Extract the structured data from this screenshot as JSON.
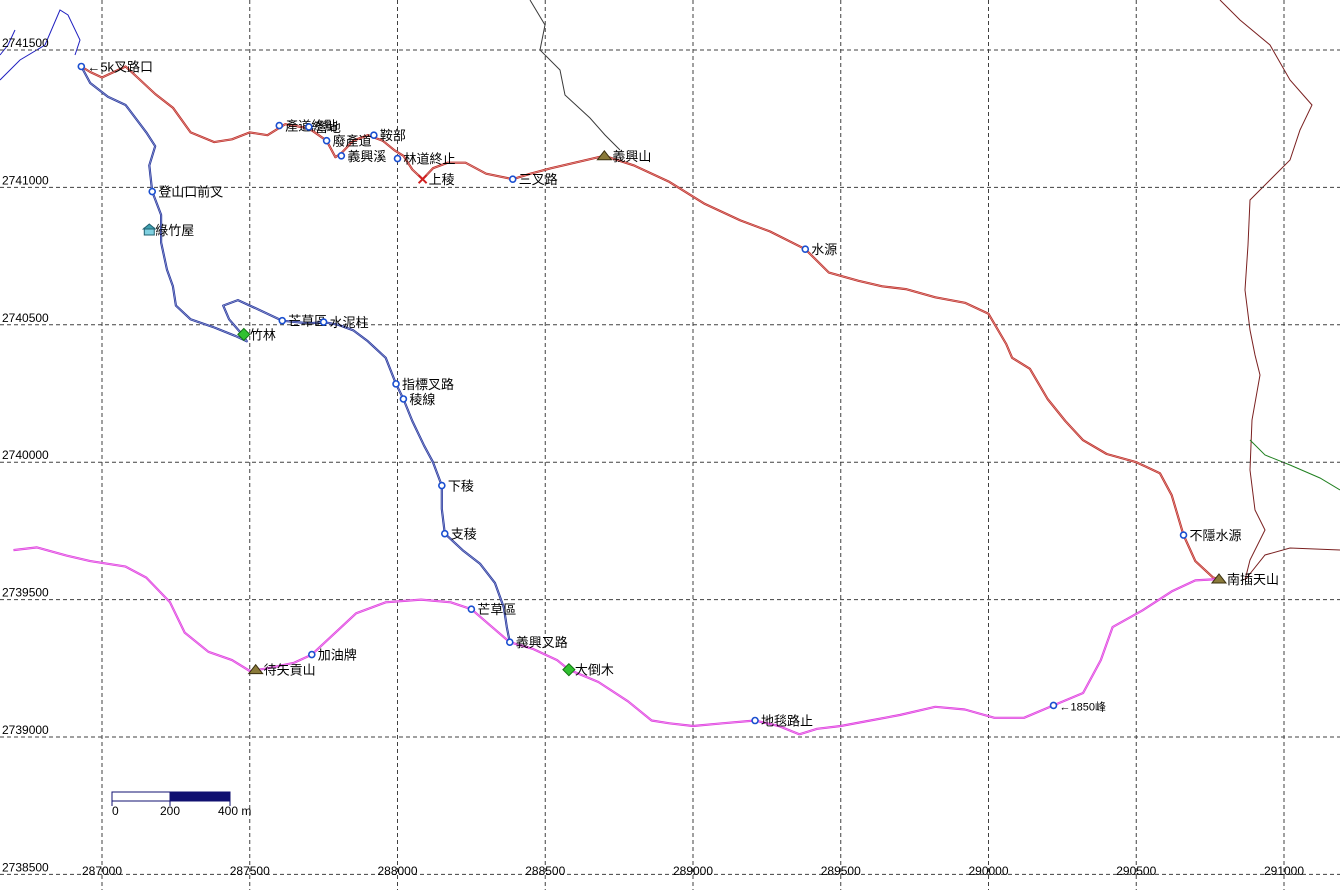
{
  "axes": {
    "x_ticks": [
      {
        "value": 287000,
        "label": "287000"
      },
      {
        "value": 287500,
        "label": "287500"
      },
      {
        "value": 288000,
        "label": "288000"
      },
      {
        "value": 288500,
        "label": "288500"
      },
      {
        "value": 289000,
        "label": "289000"
      },
      {
        "value": 289500,
        "label": "289500"
      },
      {
        "value": 290000,
        "label": "290000"
      },
      {
        "value": 290500,
        "label": "290500"
      },
      {
        "value": 291000,
        "label": "291000"
      }
    ],
    "y_ticks": [
      {
        "value": 2741500,
        "label": "2741500"
      },
      {
        "value": 2741000,
        "label": "2741000"
      },
      {
        "value": 2740500,
        "label": "2740500"
      },
      {
        "value": 2740000,
        "label": "2740000"
      },
      {
        "value": 2739500,
        "label": "2739500"
      },
      {
        "value": 2739000,
        "label": "2739000"
      },
      {
        "value": 2738500,
        "label": "2738500"
      }
    ],
    "grid": true
  },
  "scale_bar": {
    "labels": [
      "0",
      "200",
      "400 m"
    ]
  },
  "colors": {
    "red_track": "#c0302a",
    "blue_track": "#2a3aa0",
    "magenta_track": "#e040e0",
    "boundary_dark": "#3a3a3a",
    "boundary_maroon": "#7a2020",
    "boundary_blue": "#2020c0",
    "boundary_violet": "#c030c0",
    "boundary_green": "#208020",
    "grid": "#404040",
    "waypoint": "#1a4fd0",
    "tree": "#30c030",
    "scale_dark": "#101070"
  },
  "waypoints": [
    {
      "label": "←5k叉路口",
      "icon": "dot-icon",
      "x": 286930,
      "y": 2741440
    },
    {
      "label": "產道終點",
      "icon": "dot-icon",
      "x": 287600,
      "y": 2741225
    },
    {
      "label": "營地",
      "icon": "dot-icon",
      "x": 287700,
      "y": 2741220
    },
    {
      "label": "鞍部",
      "icon": "dot-icon",
      "x": 287920,
      "y": 2741190
    },
    {
      "label": "廢產道",
      "icon": "dot-icon",
      "x": 287760,
      "y": 2741170
    },
    {
      "label": "義興溪",
      "icon": "dot-icon",
      "x": 287810,
      "y": 2741115
    },
    {
      "label": "林道終止",
      "icon": "dot-icon",
      "x": 288000,
      "y": 2741105
    },
    {
      "label": "上稜",
      "icon": "cross-icon",
      "x": 288085,
      "y": 2741030
    },
    {
      "label": "三叉路",
      "icon": "dot-icon",
      "x": 288390,
      "y": 2741030
    },
    {
      "label": "義興山",
      "icon": "peak-icon",
      "x": 288700,
      "y": 2741115
    },
    {
      "label": "登山口前叉",
      "icon": "dot-icon",
      "x": 287170,
      "y": 2740985
    },
    {
      "label": "綠竹屋",
      "icon": "house-icon",
      "x": 287160,
      "y": 2740845
    },
    {
      "label": "水源",
      "icon": "dot-icon",
      "x": 289380,
      "y": 2740775
    },
    {
      "label": "芒草區",
      "icon": "dot-icon",
      "x": 287610,
      "y": 2740515
    },
    {
      "label": "水泥柱",
      "icon": "dot-icon",
      "x": 287750,
      "y": 2740510
    },
    {
      "label": "竹林",
      "icon": "tree-icon",
      "x": 287480,
      "y": 2740465
    },
    {
      "label": "指標叉路",
      "icon": "dot-icon",
      "x": 287995,
      "y": 2740285
    },
    {
      "label": "稜線",
      "icon": "dot-icon",
      "x": 288020,
      "y": 2740230
    },
    {
      "label": "下稜",
      "icon": "dot-icon",
      "x": 288150,
      "y": 2739915
    },
    {
      "label": "支稜",
      "icon": "dot-icon",
      "x": 288160,
      "y": 2739740
    },
    {
      "label": "不隱水源",
      "icon": "dot-icon",
      "x": 290660,
      "y": 2739735
    },
    {
      "label": "南插天山",
      "icon": "peak-icon",
      "x": 290780,
      "y": 2739575
    },
    {
      "label": "芒草區",
      "icon": "dot-icon",
      "x": 288250,
      "y": 2739465
    },
    {
      "label": "義興叉路",
      "icon": "dot-icon",
      "x": 288380,
      "y": 2739345
    },
    {
      "label": "加油牌",
      "icon": "dot-icon",
      "x": 287710,
      "y": 2739300
    },
    {
      "label": "大倒木",
      "icon": "tree-icon",
      "x": 288580,
      "y": 2739245
    },
    {
      "label": "待矢貢山",
      "icon": "peak-icon",
      "x": 287520,
      "y": 2739245
    },
    {
      "label": "地毯路止",
      "icon": "dot-icon",
      "x": 289210,
      "y": 2739060
    },
    {
      "label": "←1850峰",
      "icon": "dot-icon",
      "x": 290220,
      "y": 2739115
    }
  ],
  "tracks": {
    "red": [
      [
        286930,
        2741440
      ],
      [
        286960,
        2741420
      ],
      [
        287000,
        2741400
      ],
      [
        287040,
        2741420
      ],
      [
        287080,
        2741440
      ],
      [
        287120,
        2741400
      ],
      [
        287180,
        2741340
      ],
      [
        287240,
        2741290
      ],
      [
        287300,
        2741200
      ],
      [
        287380,
        2741165
      ],
      [
        287440,
        2741175
      ],
      [
        287500,
        2741200
      ],
      [
        287560,
        2741190
      ],
      [
        287620,
        2741230
      ],
      [
        287700,
        2741215
      ],
      [
        287760,
        2741170
      ],
      [
        287790,
        2741110
      ],
      [
        287810,
        2741125
      ],
      [
        287850,
        2741170
      ],
      [
        287900,
        2741190
      ],
      [
        287950,
        2741170
      ],
      [
        287990,
        2741135
      ],
      [
        288020,
        2741115
      ],
      [
        288050,
        2741065
      ],
      [
        288085,
        2741030
      ],
      [
        288120,
        2741070
      ],
      [
        288170,
        2741090
      ],
      [
        288230,
        2741090
      ],
      [
        288300,
        2741050
      ],
      [
        288390,
        2741030
      ],
      [
        288450,
        2741050
      ],
      [
        288520,
        2741070
      ],
      [
        288600,
        2741090
      ],
      [
        288700,
        2741115
      ],
      [
        288800,
        2741080
      ],
      [
        288920,
        2741020
      ],
      [
        289040,
        2740940
      ],
      [
        289160,
        2740880
      ],
      [
        289260,
        2740840
      ],
      [
        289380,
        2740775
      ],
      [
        289460,
        2740690
      ],
      [
        289560,
        2740660
      ],
      [
        289640,
        2740640
      ],
      [
        289720,
        2740630
      ],
      [
        289820,
        2740600
      ],
      [
        289920,
        2740580
      ],
      [
        290000,
        2740540
      ],
      [
        290060,
        2740430
      ],
      [
        290080,
        2740380
      ],
      [
        290140,
        2740340
      ],
      [
        290200,
        2740230
      ],
      [
        290260,
        2740150
      ],
      [
        290320,
        2740080
      ],
      [
        290400,
        2740030
      ],
      [
        290500,
        2740000
      ],
      [
        290580,
        2739960
      ],
      [
        290620,
        2739880
      ],
      [
        290660,
        2739735
      ],
      [
        290700,
        2739640
      ],
      [
        290760,
        2739580
      ],
      [
        290780,
        2739575
      ]
    ],
    "blue": [
      [
        286930,
        2741440
      ],
      [
        286960,
        2741380
      ],
      [
        287020,
        2741330
      ],
      [
        287080,
        2741300
      ],
      [
        287150,
        2741200
      ],
      [
        287180,
        2741150
      ],
      [
        287160,
        2741080
      ],
      [
        287170,
        2740985
      ],
      [
        287200,
        2740900
      ],
      [
        287200,
        2740800
      ],
      [
        287220,
        2740700
      ],
      [
        287240,
        2740640
      ],
      [
        287250,
        2740570
      ],
      [
        287300,
        2740520
      ],
      [
        287380,
        2740490
      ],
      [
        287450,
        2740460
      ],
      [
        287490,
        2740440
      ],
      [
        287470,
        2740470
      ],
      [
        287430,
        2740520
      ],
      [
        287410,
        2740570
      ],
      [
        287460,
        2740590
      ],
      [
        287520,
        2740560
      ],
      [
        287610,
        2740515
      ],
      [
        287700,
        2740505
      ],
      [
        287750,
        2740510
      ],
      [
        287800,
        2740500
      ],
      [
        287850,
        2740480
      ],
      [
        287900,
        2740440
      ],
      [
        287960,
        2740380
      ],
      [
        287995,
        2740285
      ],
      [
        288020,
        2740230
      ],
      [
        288050,
        2740150
      ],
      [
        288090,
        2740060
      ],
      [
        288120,
        2740000
      ],
      [
        288150,
        2739915
      ],
      [
        288150,
        2739830
      ],
      [
        288160,
        2739740
      ],
      [
        288220,
        2739680
      ],
      [
        288280,
        2739630
      ],
      [
        288330,
        2739560
      ],
      [
        288360,
        2739470
      ],
      [
        288370,
        2739400
      ],
      [
        288380,
        2739345
      ]
    ],
    "magenta": [
      [
        286700,
        2739680
      ],
      [
        286780,
        2739690
      ],
      [
        286880,
        2739660
      ],
      [
        286960,
        2739640
      ],
      [
        287080,
        2739620
      ],
      [
        287150,
        2739580
      ],
      [
        287230,
        2739490
      ],
      [
        287280,
        2739380
      ],
      [
        287360,
        2739310
      ],
      [
        287440,
        2739280
      ],
      [
        287500,
        2739240
      ],
      [
        287560,
        2739250
      ],
      [
        287650,
        2739270
      ],
      [
        287710,
        2739300
      ],
      [
        287800,
        2739390
      ],
      [
        287860,
        2739450
      ],
      [
        287960,
        2739490
      ],
      [
        288080,
        2739500
      ],
      [
        288180,
        2739490
      ],
      [
        288250,
        2739465
      ],
      [
        288320,
        2739400
      ],
      [
        288380,
        2739345
      ],
      [
        288460,
        2739320
      ],
      [
        288540,
        2739280
      ],
      [
        288580,
        2739245
      ],
      [
        288680,
        2739200
      ],
      [
        288780,
        2739130
      ],
      [
        288860,
        2739060
      ],
      [
        288920,
        2739050
      ],
      [
        289000,
        2739040
      ],
      [
        289100,
        2739050
      ],
      [
        289210,
        2739060
      ],
      [
        289290,
        2739040
      ],
      [
        289360,
        2739010
      ],
      [
        289420,
        2739030
      ],
      [
        289500,
        2739040
      ],
      [
        289600,
        2739060
      ],
      [
        289700,
        2739080
      ],
      [
        289820,
        2739110
      ],
      [
        289920,
        2739100
      ],
      [
        290020,
        2739070
      ],
      [
        290120,
        2739070
      ],
      [
        290220,
        2739115
      ],
      [
        290320,
        2739160
      ],
      [
        290380,
        2739280
      ],
      [
        290420,
        2739400
      ],
      [
        290520,
        2739460
      ],
      [
        290620,
        2739530
      ],
      [
        290700,
        2739570
      ],
      [
        290780,
        2739575
      ]
    ]
  }
}
